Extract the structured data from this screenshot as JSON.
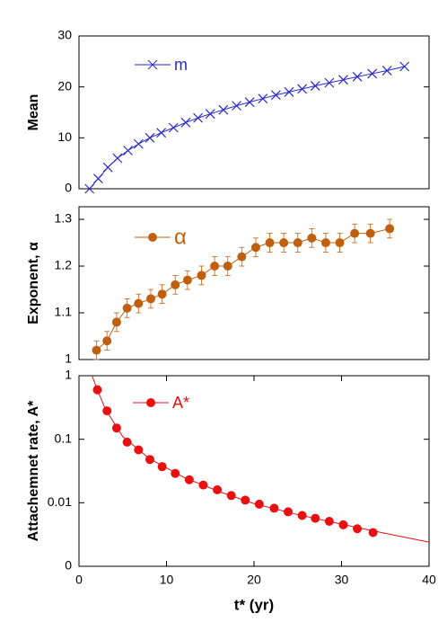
{
  "chart_data": [
    {
      "type": "line",
      "ylabel": "Mean",
      "xlim": [
        0,
        40
      ],
      "ylim": [
        0,
        30
      ],
      "yticks": [
        0,
        10,
        20,
        30
      ],
      "series": [
        {
          "name": "m",
          "color": "#2a2acc",
          "marker": "x",
          "x": [
            1.2,
            2.2,
            3.3,
            4.4,
            5.6,
            6.8,
            8.1,
            9.4,
            10.8,
            12.2,
            13.6,
            15.0,
            16.5,
            18.0,
            19.5,
            21.0,
            22.5,
            24.0,
            25.5,
            27.0,
            28.6,
            30.2,
            31.8,
            33.5,
            35.2,
            37.2
          ],
          "values": [
            0,
            2,
            4.2,
            6,
            7.5,
            8.8,
            10,
            11,
            12,
            13,
            13.9,
            14.7,
            15.5,
            16.3,
            17,
            17.7,
            18.4,
            19,
            19.6,
            20.2,
            20.8,
            21.4,
            22,
            22.6,
            23.2,
            24
          ]
        }
      ]
    },
    {
      "type": "line",
      "ylabel": "Exponent, α",
      "xlim": [
        0,
        40
      ],
      "ylim": [
        1,
        1.327
      ],
      "yticks": [
        1,
        1.1,
        1.2,
        1.3
      ],
      "series": [
        {
          "name": "α",
          "color": "#c0600f",
          "marker": "o",
          "x": [
            2,
            3.2,
            4.3,
            5.5,
            6.8,
            8.2,
            9.5,
            11,
            12.4,
            14,
            15.5,
            17,
            18.6,
            20.2,
            21.8,
            23.4,
            25,
            26.6,
            28.2,
            29.8,
            31.5,
            33.3,
            35.5
          ],
          "values": [
            1.02,
            1.04,
            1.08,
            1.11,
            1.12,
            1.13,
            1.14,
            1.16,
            1.17,
            1.18,
            1.2,
            1.2,
            1.22,
            1.24,
            1.25,
            1.25,
            1.25,
            1.26,
            1.25,
            1.25,
            1.27,
            1.27,
            1.28
          ],
          "errors": [
            0.02,
            0.02,
            0.02,
            0.02,
            0.02,
            0.02,
            0.02,
            0.02,
            0.02,
            0.02,
            0.02,
            0.02,
            0.02,
            0.02,
            0.02,
            0.02,
            0.02,
            0.02,
            0.02,
            0.02,
            0.02,
            0.02,
            0.02
          ]
        }
      ]
    },
    {
      "type": "line",
      "ylabel": "Attachemnet rate, A*",
      "xlabel": "t* (yr)",
      "log_y": true,
      "xlim": [
        0,
        40
      ],
      "xticks": [
        0,
        10,
        20,
        30,
        40
      ],
      "ylim": [
        0.001,
        1
      ],
      "yticks": [
        {
          "value": 0.001,
          "label": "0"
        },
        0.01,
        0.1,
        1
      ],
      "series": [
        {
          "name": "A*",
          "color": "#e81010",
          "marker": "o",
          "line": false,
          "x": [
            2.1,
            3.2,
            4.3,
            5.5,
            6.8,
            8.1,
            9.5,
            11,
            12.6,
            14.2,
            15.8,
            17.4,
            19,
            20.6,
            22.3,
            23.9,
            25.5,
            27,
            28.6,
            30.2,
            31.8,
            33.6
          ],
          "values": [
            0.6,
            0.28,
            0.15,
            0.09,
            0.068,
            0.048,
            0.037,
            0.029,
            0.023,
            0.019,
            0.016,
            0.013,
            0.011,
            0.0095,
            0.0082,
            0.0072,
            0.0063,
            0.0057,
            0.0051,
            0.0045,
            0.0039,
            0.0034
          ]
        },
        {
          "color": "#e81010",
          "marker": "none",
          "x": [
            1.5,
            2,
            3,
            5,
            8,
            12,
            16,
            20,
            25,
            30,
            35,
            40
          ],
          "values": [
            1.0,
            0.65,
            0.3,
            0.11,
            0.05,
            0.025,
            0.015,
            0.0097,
            0.0065,
            0.0046,
            0.0033,
            0.0024
          ]
        }
      ]
    }
  ]
}
